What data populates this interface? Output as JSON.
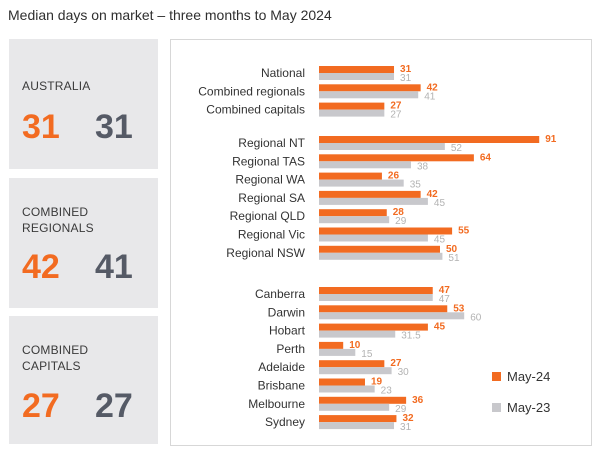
{
  "title": "Median days on market – three months to May 2024",
  "cards": [
    {
      "label_lines": [
        "AUSTRALIA"
      ],
      "value_may24": "31",
      "value_may23": "31"
    },
    {
      "label_lines": [
        "COMBINED",
        "REGIONALS"
      ],
      "value_may24": "42",
      "value_may23": "41"
    },
    {
      "label_lines": [
        "COMBINED",
        "CAPITALS"
      ],
      "value_may24": "27",
      "value_may23": "27"
    }
  ],
  "colors": {
    "may24": "#f26b21",
    "may23": "#c8c8cc",
    "value23_text": "#b3b3b3"
  },
  "chart_data": {
    "type": "bar",
    "orientation": "horizontal",
    "title": "Median days on market – three months to May 2024",
    "legend_position": "bottom-right",
    "series": [
      {
        "name": "May-24",
        "color": "#f26b21"
      },
      {
        "name": "May-23",
        "color": "#c8c8cc"
      }
    ],
    "groups": [
      {
        "categories": [
          "National",
          "Combined regionals",
          "Combined capitals"
        ],
        "may24": [
          31,
          42,
          27
        ],
        "may23": [
          31,
          41,
          27
        ],
        "may24_labels": [
          "31",
          "42",
          "27"
        ],
        "may23_labels": [
          "31",
          "41",
          "27"
        ]
      },
      {
        "categories": [
          "Regional NT",
          "Regional TAS",
          "Regional WA",
          "Regional SA",
          "Regional QLD",
          "Regional Vic",
          "Regional NSW"
        ],
        "may24": [
          91,
          64,
          26,
          42,
          28,
          55,
          50
        ],
        "may23": [
          52,
          38,
          35,
          45,
          29,
          45,
          51
        ],
        "may24_labels": [
          "91",
          "64",
          "26",
          "42",
          "28",
          "55",
          "50"
        ],
        "may23_labels": [
          "52",
          "38",
          "35",
          "45",
          "29",
          "45",
          "51"
        ]
      },
      {
        "categories": [
          "Canberra",
          "Darwin",
          "Hobart",
          "Perth",
          "Adelaide",
          "Brisbane",
          "Melbourne",
          "Sydney"
        ],
        "may24": [
          47,
          53,
          45,
          10,
          27,
          19,
          36,
          32
        ],
        "may23": [
          47,
          60,
          31.5,
          15,
          30,
          23,
          29,
          31
        ],
        "may24_labels": [
          "47",
          "53",
          "45",
          "10",
          "27",
          "19",
          "36",
          "32"
        ],
        "may23_labels": [
          "47",
          "60",
          "31.5",
          "15",
          "30",
          "23",
          "29",
          "31"
        ]
      }
    ]
  }
}
